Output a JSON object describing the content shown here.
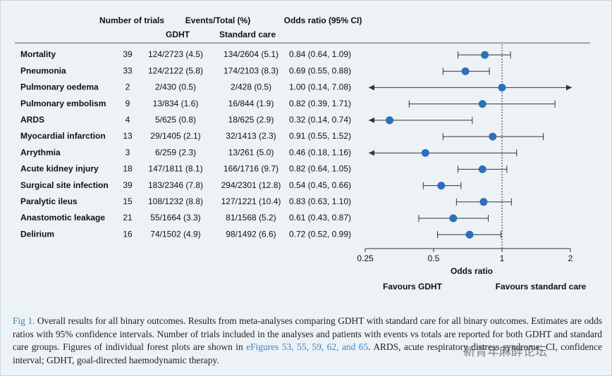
{
  "chart_data": {
    "type": "forest",
    "column_headers": [
      "Number of trials",
      "Events/Total (%)",
      "Odds ratio (95% CI)"
    ],
    "group_headers": [
      "GDHT",
      "Standard care"
    ],
    "categories": [
      "Mortality",
      "Pneumonia",
      "Pulmonary oedema",
      "Pulmonary embolism",
      "ARDS",
      "Myocardial infarction",
      "Arrythmia",
      "Acute kidney injury",
      "Surgical site infection",
      "Paralytic ileus",
      "Anastomotic leakage",
      "Delirium"
    ],
    "trials": [
      39,
      33,
      2,
      9,
      4,
      13,
      3,
      18,
      39,
      15,
      21,
      16
    ],
    "gdht": [
      "124/2723 (4.5)",
      "124/2122 (5.8)",
      "2/430 (0.5)",
      "13/834 (1.6)",
      "5/625 (0.8)",
      "29/1405 (2.1)",
      "6/259 (2.3)",
      "147/1811 (8.1)",
      "183/2346 (7.8)",
      "108/1232 (8.8)",
      "55/1664 (3.3)",
      "74/1502 (4.9)"
    ],
    "standard_care": [
      "134/2604 (5.1)",
      "174/2103 (8.3)",
      "2/428 (0.5)",
      "16/844 (1.9)",
      "18/625 (2.9)",
      "32/1413 (2.3)",
      "13/261 (5.0)",
      "166/1716 (9.7)",
      "294/2301 (12.8)",
      "127/1221 (10.4)",
      "81/1568 (5.2)",
      "98/1492 (6.6)"
    ],
    "values": [
      0.84,
      0.69,
      1.0,
      0.82,
      0.32,
      0.91,
      0.46,
      0.82,
      0.54,
      0.83,
      0.61,
      0.72
    ],
    "value_labels": [
      "0.84 (0.64, 1.09)",
      "0.69 (0.55, 0.88)",
      "1.00 (0.14, 7.08)",
      "0.82 (0.39, 1.71)",
      "0.32 (0.14, 0.74)",
      "0.91 (0.55, 1.52)",
      "0.46 (0.18, 1.16)",
      "0.82 (0.64, 1.05)",
      "0.54 (0.45, 0.66)",
      "0.83 (0.63, 1.10)",
      "0.61 (0.43, 0.87)",
      "0.72 (0.52, 0.99)"
    ],
    "ci_lower": [
      0.64,
      0.55,
      0.14,
      0.39,
      0.14,
      0.55,
      0.18,
      0.64,
      0.45,
      0.63,
      0.43,
      0.52
    ],
    "ci_upper": [
      1.09,
      0.88,
      7.08,
      1.71,
      0.74,
      1.52,
      1.16,
      1.05,
      0.66,
      1.1,
      0.87,
      0.99
    ],
    "color": "#2f6fb8",
    "ci_color": "#333333",
    "reference": 1,
    "log_scale": true,
    "xlim": [
      0.25,
      2
    ],
    "xticks": [
      0.25,
      0.5,
      1,
      2
    ],
    "xlabel": "Odds ratio",
    "favours_left": "Favours GDHT",
    "favours_right": "Favours standard care"
  },
  "caption": {
    "label": "Fig 1.",
    "text_before": "Overall results for all binary outcomes. Results from meta-analyses comparing GDHT with standard care for all binary outcomes. Estimates are odds ratios with 95% confidence intervals. Number of trials included in the analyses and patients with events vs totals are reported for both GDHT and standard care groups. Figures of individual forest plots are shown in",
    "link": "eFigures 53, 55, 59, 62, and 65",
    "text_after": ". ARDS, acute respiratory distress syndrome; CI, confidence interval; GDHT, goal-directed haemodynamic therapy."
  },
  "watermark": "新青年麻醉论坛"
}
